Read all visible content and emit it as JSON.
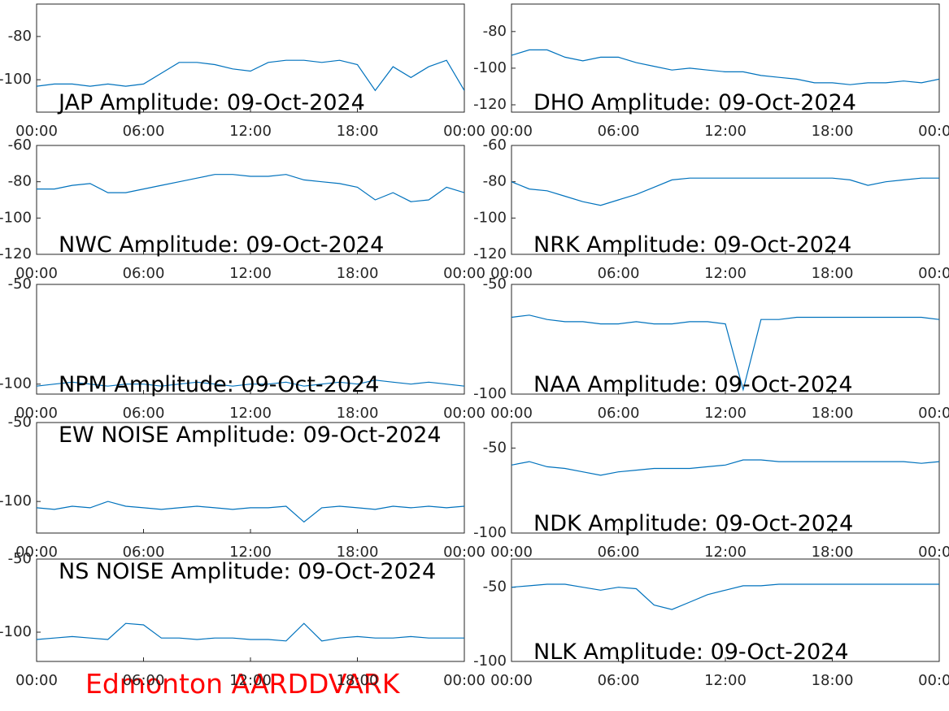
{
  "chart_data": [
    {
      "type": "line",
      "title": "JAP Amplitude: 09-Oct-2024",
      "color": "#0072bd",
      "x": [
        0,
        1,
        2,
        3,
        4,
        5,
        6,
        7,
        8,
        9,
        10,
        11,
        12,
        13,
        14,
        15,
        16,
        17,
        18,
        19,
        20,
        21,
        22,
        23,
        24
      ],
      "values": [
        -103,
        -102,
        -102,
        -103,
        -102,
        -103,
        -102,
        -97,
        -92,
        -92,
        -93,
        -95,
        -96,
        -92,
        -91,
        -91,
        -92,
        -91,
        -93,
        -105,
        -94,
        -99,
        -94,
        -91,
        -105
      ],
      "xlim": [
        0,
        24
      ],
      "xticks": [
        {
          "value": 0,
          "label": "00:00"
        },
        {
          "value": 6,
          "label": "06:00"
        },
        {
          "value": 12,
          "label": "12:00"
        },
        {
          "value": 18,
          "label": "18:00"
        },
        {
          "value": 24,
          "label": "00:00"
        }
      ],
      "ylim": [
        -115,
        -65
      ],
      "yticks": [
        -100,
        -80
      ]
    },
    {
      "type": "line",
      "title": "DHO Amplitude: 09-Oct-2024",
      "color": "#0072bd",
      "x": [
        0,
        1,
        2,
        3,
        4,
        5,
        6,
        7,
        8,
        9,
        10,
        11,
        12,
        13,
        14,
        15,
        16,
        17,
        18,
        19,
        20,
        21,
        22,
        23,
        24
      ],
      "values": [
        -93,
        -90,
        -90,
        -94,
        -96,
        -94,
        -94,
        -97,
        -99,
        -101,
        -100,
        -101,
        -102,
        -102,
        -104,
        -105,
        -106,
        -108,
        -108,
        -109,
        -108,
        -108,
        -107,
        -108,
        -106
      ],
      "xlim": [
        0,
        24
      ],
      "xticks": [
        {
          "value": 0,
          "label": "00:00"
        },
        {
          "value": 6,
          "label": "06:00"
        },
        {
          "value": 12,
          "label": "12:00"
        },
        {
          "value": 18,
          "label": "18:00"
        },
        {
          "value": 24,
          "label": "00:00"
        }
      ],
      "ylim": [
        -124,
        -65
      ],
      "yticks": [
        -120,
        -100,
        -80
      ]
    },
    {
      "type": "line",
      "title": "NWC Amplitude: 09-Oct-2024",
      "color": "#0072bd",
      "x": [
        0,
        1,
        2,
        3,
        4,
        5,
        6,
        7,
        8,
        9,
        10,
        11,
        12,
        13,
        14,
        15,
        16,
        17,
        18,
        19,
        20,
        21,
        22,
        23,
        24
      ],
      "values": [
        -84,
        -84,
        -82,
        -81,
        -86,
        -86,
        -84,
        -82,
        -80,
        -78,
        -76,
        -76,
        -77,
        -77,
        -76,
        -79,
        -80,
        -81,
        -83,
        -90,
        -86,
        -91,
        -90,
        -83,
        -86
      ],
      "xlim": [
        0,
        24
      ],
      "xticks": [
        {
          "value": 0,
          "label": "00:00"
        },
        {
          "value": 6,
          "label": "06:00"
        },
        {
          "value": 12,
          "label": "12:00"
        },
        {
          "value": 18,
          "label": "18:00"
        },
        {
          "value": 24,
          "label": "00:00"
        }
      ],
      "ylim": [
        -120,
        -60
      ],
      "yticks": [
        -120,
        -100,
        -80,
        -60
      ]
    },
    {
      "type": "line",
      "title": "NRK Amplitude: 09-Oct-2024",
      "color": "#0072bd",
      "x": [
        0,
        1,
        2,
        3,
        4,
        5,
        6,
        7,
        8,
        9,
        10,
        11,
        12,
        13,
        14,
        15,
        16,
        17,
        18,
        19,
        20,
        21,
        22,
        23,
        24
      ],
      "values": [
        -80,
        -84,
        -85,
        -88,
        -91,
        -93,
        -90,
        -87,
        -83,
        -79,
        -78,
        -78,
        -78,
        -78,
        -78,
        -78,
        -78,
        -78,
        -78,
        -79,
        -82,
        -80,
        -79,
        -78,
        -78
      ],
      "xlim": [
        0,
        24
      ],
      "xticks": [
        {
          "value": 0,
          "label": "00:00"
        },
        {
          "value": 6,
          "label": "06:00"
        },
        {
          "value": 12,
          "label": "12:00"
        },
        {
          "value": 18,
          "label": "18:00"
        },
        {
          "value": 24,
          "label": "00:00"
        }
      ],
      "ylim": [
        -120,
        -60
      ],
      "yticks": [
        -120,
        -100,
        -80,
        -60
      ]
    },
    {
      "type": "line",
      "title": "NPM Amplitude: 09-Oct-2024",
      "color": "#0072bd",
      "x": [
        0,
        1,
        2,
        3,
        4,
        5,
        6,
        7,
        8,
        9,
        10,
        11,
        12,
        13,
        14,
        15,
        16,
        17,
        18,
        19,
        20,
        21,
        22,
        23,
        24
      ],
      "values": [
        -101,
        -100,
        -99,
        -100,
        -101,
        -100,
        -100,
        -101,
        -100,
        -99,
        -100,
        -101,
        -100,
        -100,
        -99,
        -101,
        -100,
        -99,
        -100,
        -98,
        -99,
        -100,
        -99,
        -100,
        -101
      ],
      "xlim": [
        0,
        24
      ],
      "xticks": [
        {
          "value": 0,
          "label": "00:00"
        },
        {
          "value": 6,
          "label": "06:00"
        },
        {
          "value": 12,
          "label": "12:00"
        },
        {
          "value": 18,
          "label": "18:00"
        },
        {
          "value": 24,
          "label": "00:00"
        }
      ],
      "ylim": [
        -105,
        -50
      ],
      "yticks": [
        -100,
        -50
      ]
    },
    {
      "type": "line",
      "title": "NAA Amplitude: 09-Oct-2024",
      "color": "#0072bd",
      "x": [
        0,
        1,
        2,
        3,
        4,
        5,
        6,
        7,
        8,
        9,
        10,
        11,
        12,
        13,
        14,
        15,
        16,
        17,
        18,
        19,
        20,
        21,
        22,
        23,
        24
      ],
      "values": [
        -65,
        -64,
        -66,
        -67,
        -67,
        -68,
        -68,
        -67,
        -68,
        -68,
        -67,
        -67,
        -68,
        -98,
        -66,
        -66,
        -65,
        -65,
        -65,
        -65,
        -65,
        -65,
        -65,
        -65,
        -66
      ],
      "xlim": [
        0,
        24
      ],
      "xticks": [
        {
          "value": 0,
          "label": "00:00"
        },
        {
          "value": 6,
          "label": "06:00"
        },
        {
          "value": 12,
          "label": "12:00"
        },
        {
          "value": 18,
          "label": "18:00"
        },
        {
          "value": 24,
          "label": "00:00"
        }
      ],
      "ylim": [
        -100,
        -50
      ],
      "yticks": [
        -100,
        -50
      ]
    },
    {
      "type": "line",
      "title": "EW NOISE Amplitude: 09-Oct-2024",
      "color": "#0072bd",
      "x": [
        0,
        1,
        2,
        3,
        4,
        5,
        6,
        7,
        8,
        9,
        10,
        11,
        12,
        13,
        14,
        15,
        16,
        17,
        18,
        19,
        20,
        21,
        22,
        23,
        24
      ],
      "values": [
        -104,
        -105,
        -103,
        -104,
        -100,
        -103,
        -104,
        -105,
        -104,
        -103,
        -104,
        -105,
        -104,
        -104,
        -103,
        -113,
        -104,
        -103,
        -104,
        -105,
        -103,
        -104,
        -103,
        -104,
        -103
      ],
      "xlim": [
        0,
        24
      ],
      "xticks": [
        {
          "value": 0,
          "label": "00:00"
        },
        {
          "value": 6,
          "label": "06:00"
        },
        {
          "value": 12,
          "label": "12:00"
        },
        {
          "value": 18,
          "label": "18:00"
        },
        {
          "value": 24,
          "label": "00:00"
        }
      ],
      "ylim": [
        -120,
        -50
      ],
      "yticks": [
        -100,
        -50
      ]
    },
    {
      "type": "line",
      "title": "NDK Amplitude: 09-Oct-2024",
      "color": "#0072bd",
      "x": [
        0,
        1,
        2,
        3,
        4,
        5,
        6,
        7,
        8,
        9,
        10,
        11,
        12,
        13,
        14,
        15,
        16,
        17,
        18,
        19,
        20,
        21,
        22,
        23,
        24
      ],
      "values": [
        -60,
        -58,
        -61,
        -62,
        -64,
        -66,
        -64,
        -63,
        -62,
        -62,
        -62,
        -61,
        -60,
        -57,
        -57,
        -58,
        -58,
        -58,
        -58,
        -58,
        -58,
        -58,
        -58,
        -59,
        -58
      ],
      "xlim": [
        0,
        24
      ],
      "xticks": [
        {
          "value": 0,
          "label": "00:00"
        },
        {
          "value": 6,
          "label": "06:00"
        },
        {
          "value": 12,
          "label": "12:00"
        },
        {
          "value": 18,
          "label": "18:00"
        },
        {
          "value": 24,
          "label": "00:00"
        }
      ],
      "ylim": [
        -100,
        -35
      ],
      "yticks": [
        -100,
        -50
      ]
    },
    {
      "type": "line",
      "title": "NS NOISE Amplitude: 09-Oct-2024",
      "color": "#0072bd",
      "x": [
        0,
        1,
        2,
        3,
        4,
        5,
        6,
        7,
        8,
        9,
        10,
        11,
        12,
        13,
        14,
        15,
        16,
        17,
        18,
        19,
        20,
        21,
        22,
        23,
        24
      ],
      "values": [
        -105,
        -104,
        -103,
        -104,
        -105,
        -94,
        -95,
        -104,
        -104,
        -105,
        -104,
        -104,
        -105,
        -105,
        -106,
        -94,
        -106,
        -104,
        -103,
        -104,
        -104,
        -103,
        -104,
        -104,
        -104
      ],
      "xlim": [
        0,
        24
      ],
      "xticks": [
        {
          "value": 0,
          "label": "00:00"
        },
        {
          "value": 6,
          "label": "06:00"
        },
        {
          "value": 12,
          "label": "12:00"
        },
        {
          "value": 18,
          "label": "18:00"
        },
        {
          "value": 24,
          "label": "00:00"
        }
      ],
      "ylim": [
        -120,
        -50
      ],
      "yticks": [
        -100,
        -50
      ]
    },
    {
      "type": "line",
      "title": "NLK Amplitude: 09-Oct-2024",
      "color": "#0072bd",
      "x": [
        0,
        1,
        2,
        3,
        4,
        5,
        6,
        7,
        8,
        9,
        10,
        11,
        12,
        13,
        14,
        15,
        16,
        17,
        18,
        19,
        20,
        21,
        22,
        23,
        24
      ],
      "values": [
        -50,
        -49,
        -48,
        -48,
        -50,
        -52,
        -50,
        -51,
        -62,
        -65,
        -60,
        -55,
        -52,
        -49,
        -49,
        -48,
        -48,
        -48,
        -48,
        -48,
        -48,
        -48,
        -48,
        -48,
        -48
      ],
      "xlim": [
        0,
        24
      ],
      "xticks": [
        {
          "value": 0,
          "label": "00:00"
        },
        {
          "value": 6,
          "label": "06:00"
        },
        {
          "value": 12,
          "label": "12:00"
        },
        {
          "value": 18,
          "label": "18:00"
        },
        {
          "value": 24,
          "label": "00:00"
        }
      ],
      "ylim": [
        -100,
        -31
      ],
      "yticks": [
        -100,
        -50
      ]
    }
  ],
  "footer": "Edmonton AARDDVARK"
}
